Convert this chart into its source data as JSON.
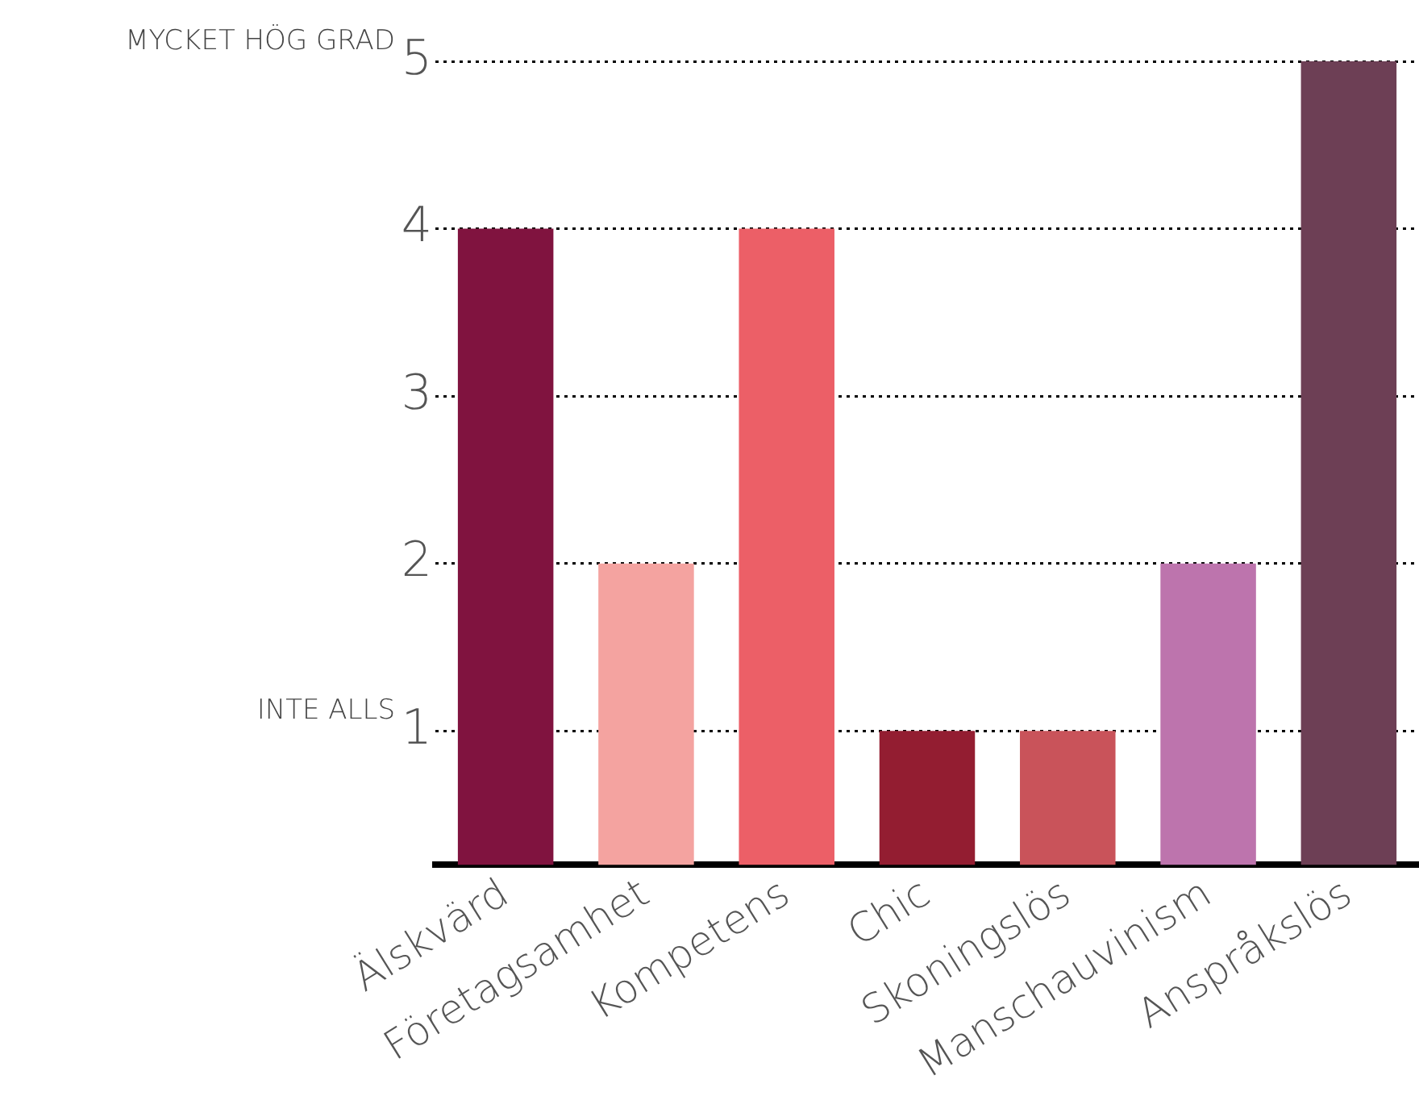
{
  "chart_data": {
    "type": "bar",
    "categories": [
      "Älskvärd",
      "Företagsamhet",
      "Kompetens",
      "Chic",
      "Skoningslös",
      "Manschauvinism",
      "Anspråkslös"
    ],
    "values": [
      4,
      2,
      4,
      1,
      1,
      2,
      5
    ],
    "colors": [
      "#80133f",
      "#f4a3a0",
      "#ec5f67",
      "#931d31",
      "#c9535a",
      "#bd74ad",
      "#6d3f55"
    ],
    "ylim": [
      0.2,
      5
    ],
    "yticks": [
      1,
      2,
      3,
      4,
      5
    ],
    "grid": "y",
    "legend": false,
    "annotations": [
      "MYCKET HÖG GRAD",
      "INTE ALLS"
    ]
  }
}
